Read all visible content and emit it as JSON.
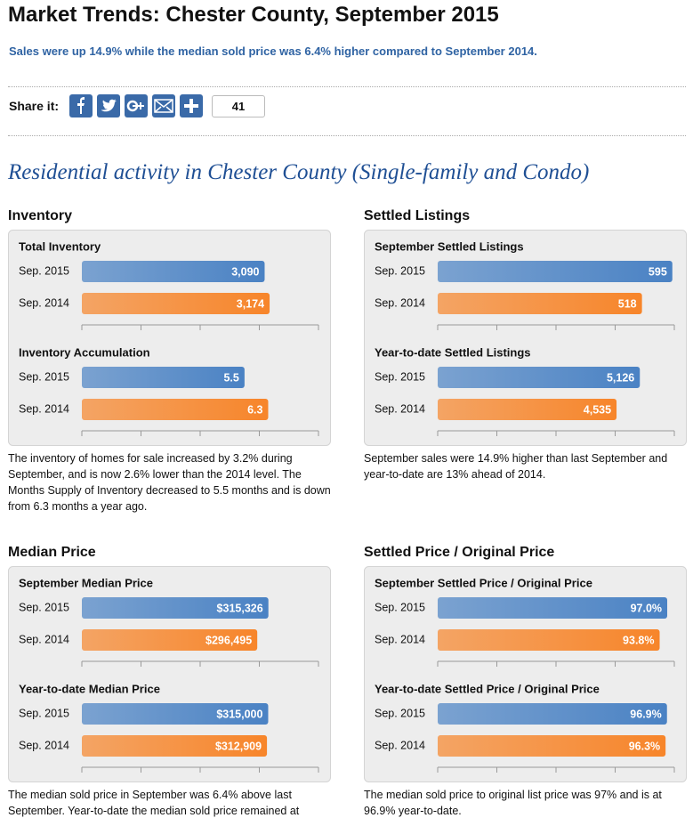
{
  "header": {
    "title": "Market Trends: Chester County, September 2015",
    "subtitle": "Sales were up 14.9% while the median sold price was 6.4% higher compared to September 2014."
  },
  "share": {
    "label": "Share it:",
    "count": 41
  },
  "section_title": "Residential activity in Chester County (Single-family and Condo)",
  "panels": [
    {
      "title": "Inventory",
      "caption": "The inventory of homes for sale increased by 3.2% during September, and is now 2.6% lower than the 2014 level. The Months Supply of Inventory decreased to 5.5 months and is down from 6.3 months a year ago."
    },
    {
      "title": "Settled Listings",
      "caption": "September sales were 14.9% higher than last September and year-to-date are 13% ahead of 2014."
    },
    {
      "title": "Median Price",
      "caption": "The median sold price in September was 6.4% above last September. Year-to-date the median sold price remained at"
    },
    {
      "title": "Settled Price / Original Price",
      "caption": "The median sold price to original list price was 97% and is at 96.9% year-to-date."
    }
  ],
  "chart_data": [
    {
      "type": "bar",
      "title": "Total Inventory",
      "categories": [
        "Sep. 2015",
        "Sep. 2014"
      ],
      "values": [
        3090,
        3174
      ],
      "value_labels": [
        "3,090",
        "3,174"
      ],
      "colors": [
        "#4a82c4",
        "#f7852a"
      ],
      "xlim": [
        0,
        4000
      ],
      "xticks": [
        0,
        1000,
        2000,
        3000,
        4000
      ]
    },
    {
      "type": "bar",
      "title": "Inventory Accumulation",
      "categories": [
        "Sep. 2015",
        "Sep. 2014"
      ],
      "values": [
        5.5,
        6.3
      ],
      "colors": [
        "#4a82c4",
        "#f7852a"
      ],
      "xlim": [
        0,
        8
      ],
      "xticks": [
        0,
        2,
        4,
        6,
        8
      ]
    },
    {
      "type": "bar",
      "title": "September Settled Listings",
      "categories": [
        "Sep. 2015",
        "Sep. 2014"
      ],
      "values": [
        595,
        518
      ],
      "colors": [
        "#4a82c4",
        "#f7852a"
      ],
      "xlim": [
        0,
        600
      ],
      "xticks": [
        0,
        150,
        300,
        450,
        600
      ]
    },
    {
      "type": "bar",
      "title": "Year-to-date Settled Listings",
      "categories": [
        "Sep. 2015",
        "Sep. 2014"
      ],
      "values": [
        5126,
        4535
      ],
      "value_labels": [
        "5,126",
        "4,535"
      ],
      "colors": [
        "#4a82c4",
        "#f7852a"
      ],
      "xlim": [
        0,
        6000
      ],
      "xticks": [
        0,
        1500,
        3000,
        4500,
        6000
      ]
    },
    {
      "type": "bar",
      "title": "September Median Price",
      "categories": [
        "Sep. 2015",
        "Sep. 2014"
      ],
      "values": [
        315326,
        296495
      ],
      "value_labels": [
        "$315,326",
        "$296,495"
      ],
      "colors": [
        "#4a82c4",
        "#f7852a"
      ],
      "xlim": [
        0,
        400000
      ],
      "xticks": [
        0,
        100000,
        200000,
        300000,
        400000
      ]
    },
    {
      "type": "bar",
      "title": "Year-to-date Median Price",
      "categories": [
        "Sep. 2015",
        "Sep. 2014"
      ],
      "values": [
        315000,
        312909
      ],
      "value_labels": [
        "$315,000",
        "$312,909"
      ],
      "colors": [
        "#4a82c4",
        "#f7852a"
      ],
      "xlim": [
        0,
        400000
      ],
      "xticks": [
        0,
        100000,
        200000,
        300000,
        400000
      ]
    },
    {
      "type": "bar",
      "title": "September Settled Price / Original Price",
      "categories": [
        "Sep. 2015",
        "Sep. 2014"
      ],
      "values": [
        97.0,
        93.8
      ],
      "value_labels": [
        "97.0%",
        "93.8%"
      ],
      "colors": [
        "#4a82c4",
        "#f7852a"
      ],
      "xlim": [
        0,
        100
      ],
      "xticks": [
        0,
        25,
        50,
        75,
        100
      ]
    },
    {
      "type": "bar",
      "title": "Year-to-date Settled Price / Original Price",
      "categories": [
        "Sep. 2015",
        "Sep. 2014"
      ],
      "values": [
        96.9,
        96.3
      ],
      "value_labels": [
        "96.9%",
        "96.3%"
      ],
      "colors": [
        "#4a82c4",
        "#f7852a"
      ],
      "xlim": [
        0,
        100
      ],
      "xticks": [
        0,
        25,
        50,
        75,
        100
      ]
    }
  ]
}
